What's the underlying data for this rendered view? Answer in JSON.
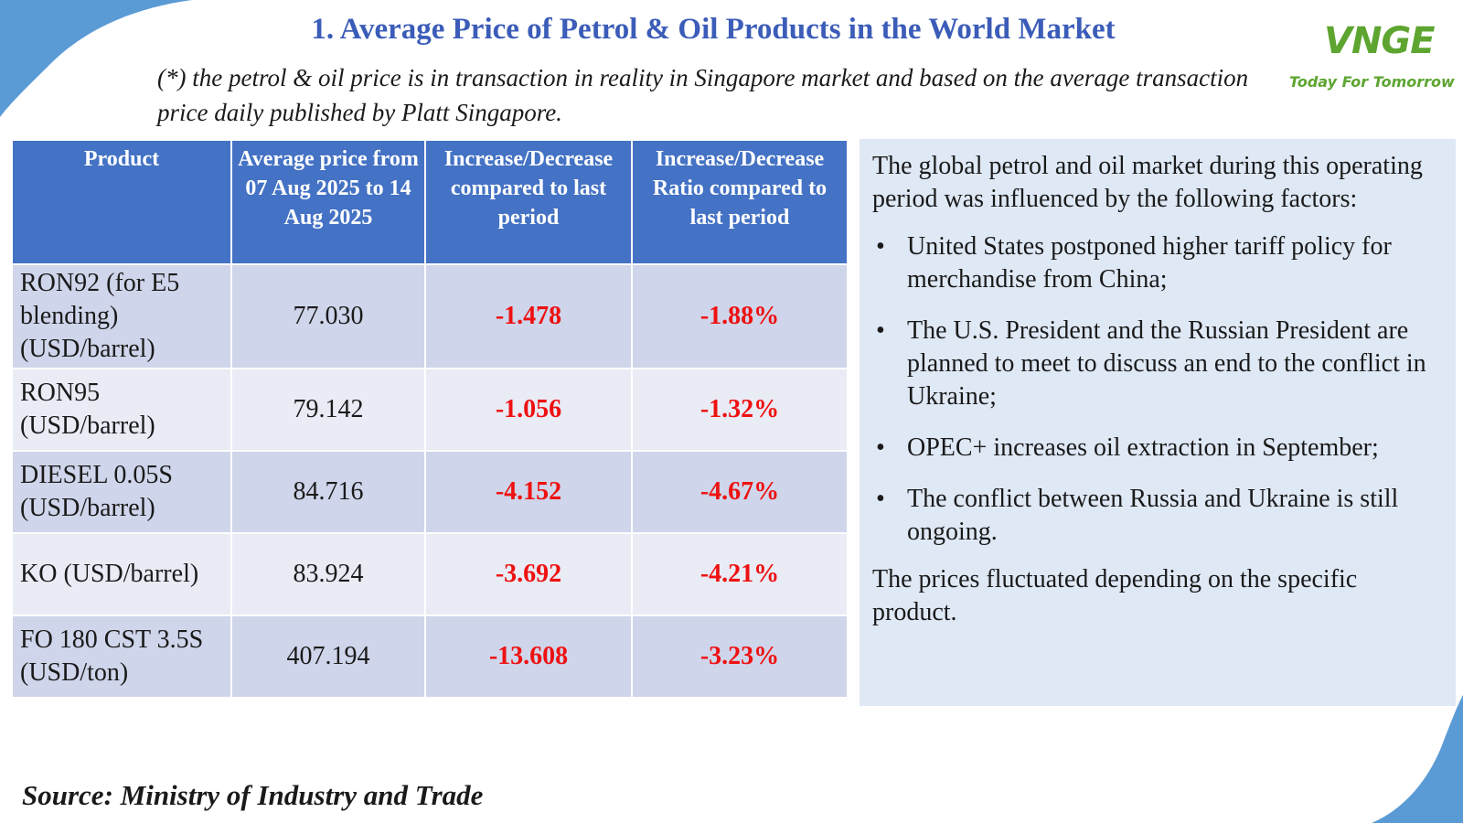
{
  "title": "1. Average Price of Petrol & Oil Products in the World Market",
  "note": "(*) the petrol & oil price is in transaction in reality in Singapore market and based on the average transaction price daily published by Platt Singapore.",
  "logo": {
    "mark": "VNGE",
    "tagline": "Today For Tomorrow"
  },
  "table": {
    "headers": [
      "Product",
      "Average price from 07 Aug 2025 to 14 Aug 2025",
      "Increase/Decrease compared to last period",
      "Increase/Decrease Ratio compared to last period"
    ],
    "rows": [
      {
        "product": "RON92 (for E5 blending) (USD/barrel)",
        "price": "77.030",
        "change": "-1.478",
        "ratio": "-1.88%"
      },
      {
        "product": "RON95 (USD/barrel)",
        "price": "79.142",
        "change": "-1.056",
        "ratio": "-1.32%"
      },
      {
        "product": "DIESEL 0.05S (USD/barrel)",
        "price": "84.716",
        "change": "-4.152",
        "ratio": "-4.67%"
      },
      {
        "product": "KO (USD/barrel)",
        "price": "83.924",
        "change": "-3.692",
        "ratio": "-4.21%"
      },
      {
        "product": "FO 180 CST 3.5S (USD/ton)",
        "price": "407.194",
        "change": "-13.608",
        "ratio": "-3.23%"
      }
    ]
  },
  "panel": {
    "intro": "The global petrol and oil market during this operating period was influenced by the following factors:",
    "bullet_symbol": "•",
    "bullets": [
      "United States postponed higher tariff policy for merchandise from China;",
      "The U.S. President and the Russian President are planned to meet to discuss an end to the conflict in Ukraine;",
      "OPEC+ increases oil extraction in September;",
      "The conflict between Russia and Ukraine is still ongoing."
    ],
    "closing": "The prices fluctuated depending on the specific product."
  },
  "source": "Source: Ministry of Industry and Trade",
  "colors": {
    "title": "#3b5cb8",
    "header_bg": "#4472c4",
    "row_odd": "#cfd5ea",
    "row_even": "#e9ebf5",
    "negative": "#ee1111",
    "panel_bg": "#dfe8f5",
    "logo": "#5da530"
  }
}
